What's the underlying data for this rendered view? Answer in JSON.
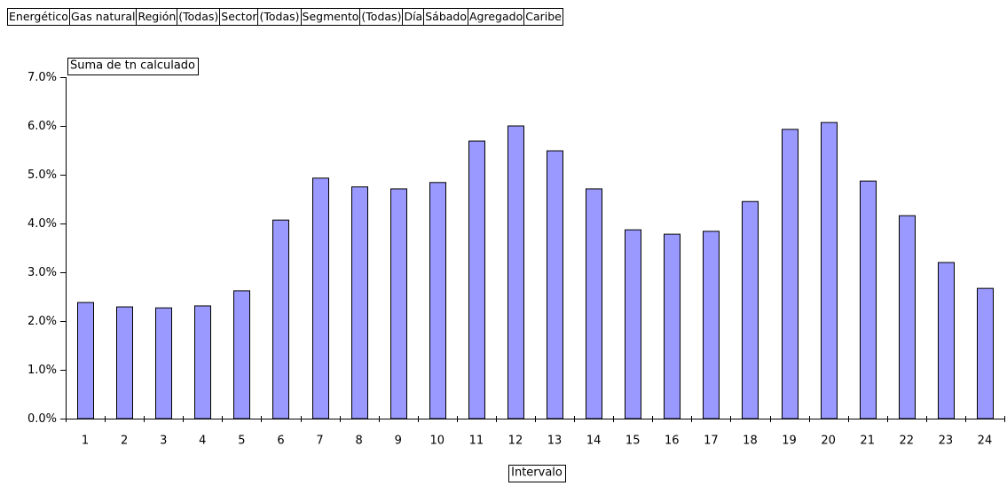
{
  "filters": [
    "Energético",
    "Gas natural",
    "Región",
    "(Todas)",
    "Sector",
    "(Todas)",
    "Segmento",
    "(Todas)",
    "Día",
    "Sábado",
    "Agregado",
    "Caribe"
  ],
  "chart_data": {
    "type": "bar",
    "ylabel": "Suma de tn calculado",
    "xlabel": "Intervalo",
    "categories": [
      "1",
      "2",
      "3",
      "4",
      "5",
      "6",
      "7",
      "8",
      "9",
      "10",
      "11",
      "12",
      "13",
      "14",
      "15",
      "16",
      "17",
      "18",
      "19",
      "20",
      "21",
      "22",
      "23",
      "24"
    ],
    "values": [
      2.38,
      2.29,
      2.27,
      2.31,
      2.62,
      4.07,
      4.93,
      4.75,
      4.71,
      4.84,
      5.69,
      6.0,
      5.49,
      4.71,
      3.87,
      3.78,
      3.84,
      4.45,
      5.93,
      6.07,
      4.87,
      4.16,
      3.2,
      2.67
    ],
    "color": "#9999ff",
    "ylim": [
      0,
      7
    ],
    "yticks": [
      {
        "value": 0,
        "label": "0.0%"
      },
      {
        "value": 1,
        "label": "1.0%"
      },
      {
        "value": 2,
        "label": "2.0%"
      },
      {
        "value": 3,
        "label": "3.0%"
      },
      {
        "value": 4,
        "label": "4.0%"
      },
      {
        "value": 5,
        "label": "5.0%"
      },
      {
        "value": 6,
        "label": "6.0%"
      },
      {
        "value": 7,
        "label": "7.0%"
      }
    ],
    "grid": false
  }
}
